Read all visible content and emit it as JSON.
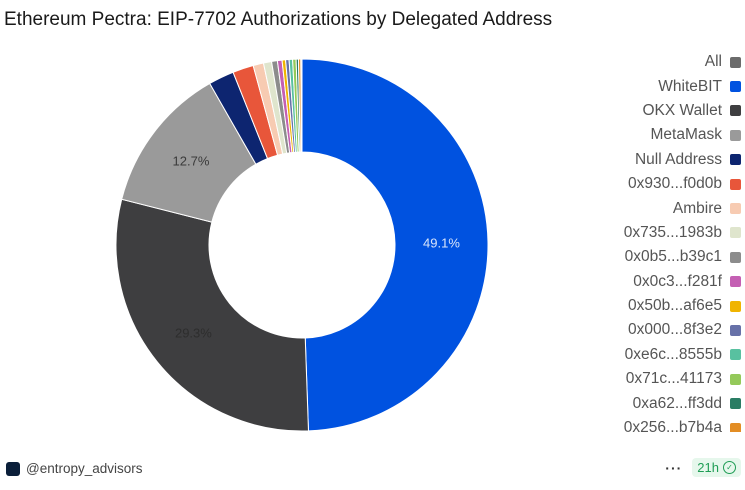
{
  "chart_data": {
    "type": "pie",
    "title": "Ethereum Pectra: EIP-7702 Authorizations by Delegated Address",
    "donut": true,
    "categories": [
      "WhiteBIT",
      "OKX Wallet",
      "MetaMask",
      "Null Address",
      "0x930...f0d0b",
      "Ambire",
      "0x735...1983b",
      "0x0b5...b39c1",
      "0x0c3...f281f",
      "0x50b...af6e5",
      "0x000...8f3e2",
      "0xe6c...8555b",
      "0x71c...41173",
      "0xa62...ff3dd",
      "0x256...b7b4a"
    ],
    "values": [
      49.1,
      29.3,
      12.7,
      2.2,
      1.8,
      0.9,
      0.7,
      0.5,
      0.4,
      0.3,
      0.3,
      0.3,
      0.3,
      0.2,
      0.2
    ],
    "other_value": 0.1,
    "data_labels": [
      {
        "category": "WhiteBIT",
        "text": "49.1%"
      },
      {
        "category": "OKX Wallet",
        "text": "29.3%"
      },
      {
        "category": "MetaMask",
        "text": "12.7%"
      }
    ],
    "legend_position": "right"
  },
  "legend": {
    "all_label": "All",
    "all_color": "#6b6b6b",
    "items": [
      {
        "label": "WhiteBIT",
        "color": "#0052e0"
      },
      {
        "label": "OKX Wallet",
        "color": "#3e3e40"
      },
      {
        "label": "MetaMask",
        "color": "#9a9a9a"
      },
      {
        "label": "Null Address",
        "color": "#0d2570"
      },
      {
        "label": "0x930...f0d0b",
        "color": "#e8563a"
      },
      {
        "label": "Ambire",
        "color": "#f7cbb2"
      },
      {
        "label": "0x735...1983b",
        "color": "#dfe5cd"
      },
      {
        "label": "0x0b5...b39c1",
        "color": "#8c8c8c"
      },
      {
        "label": "0x0c3...f281f",
        "color": "#c45fb3"
      },
      {
        "label": "0x50b...af6e5",
        "color": "#f0b400"
      },
      {
        "label": "0x000...8f3e2",
        "color": "#6771a8"
      },
      {
        "label": "0xe6c...8555b",
        "color": "#58c1a0"
      },
      {
        "label": "0x71c...41173",
        "color": "#94c95a"
      },
      {
        "label": "0xa62...ff3dd",
        "color": "#2a7d64"
      },
      {
        "label": "0x256...b7b4a",
        "color": "#e38d24"
      }
    ]
  },
  "footer": {
    "author": "@entropy_advisors",
    "more_label": "···",
    "refresh_age": "21h"
  }
}
